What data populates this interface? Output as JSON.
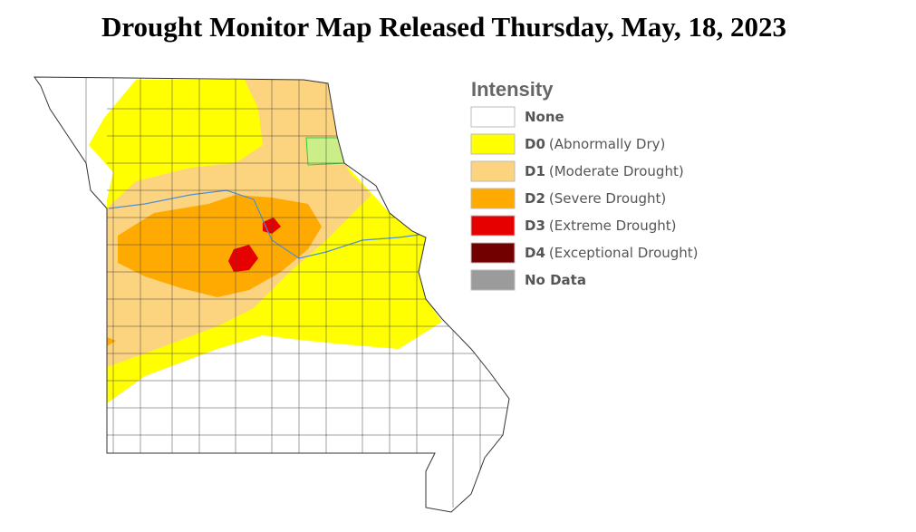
{
  "title": "Drought Monitor Map Released Thursday, May, 18, 2023",
  "legend": {
    "title": "Intensity",
    "items": [
      {
        "label": "None",
        "color": "#ffffff"
      },
      {
        "label": "D0",
        "description": "(Abnormally Dry)",
        "color": "#ffff00"
      },
      {
        "label": "D1",
        "description": "(Moderate Drought)",
        "color": "#fcd37f"
      },
      {
        "label": "D2",
        "description": "(Severe Drought)",
        "color": "#ffaa00"
      },
      {
        "label": "D3",
        "description": "(Extreme Drought)",
        "color": "#e60000"
      },
      {
        "label": "D4",
        "description": "(Exceptional Drought)",
        "color": "#730000"
      },
      {
        "label": "No Data",
        "color": "#9b9b9b"
      }
    ]
  }
}
